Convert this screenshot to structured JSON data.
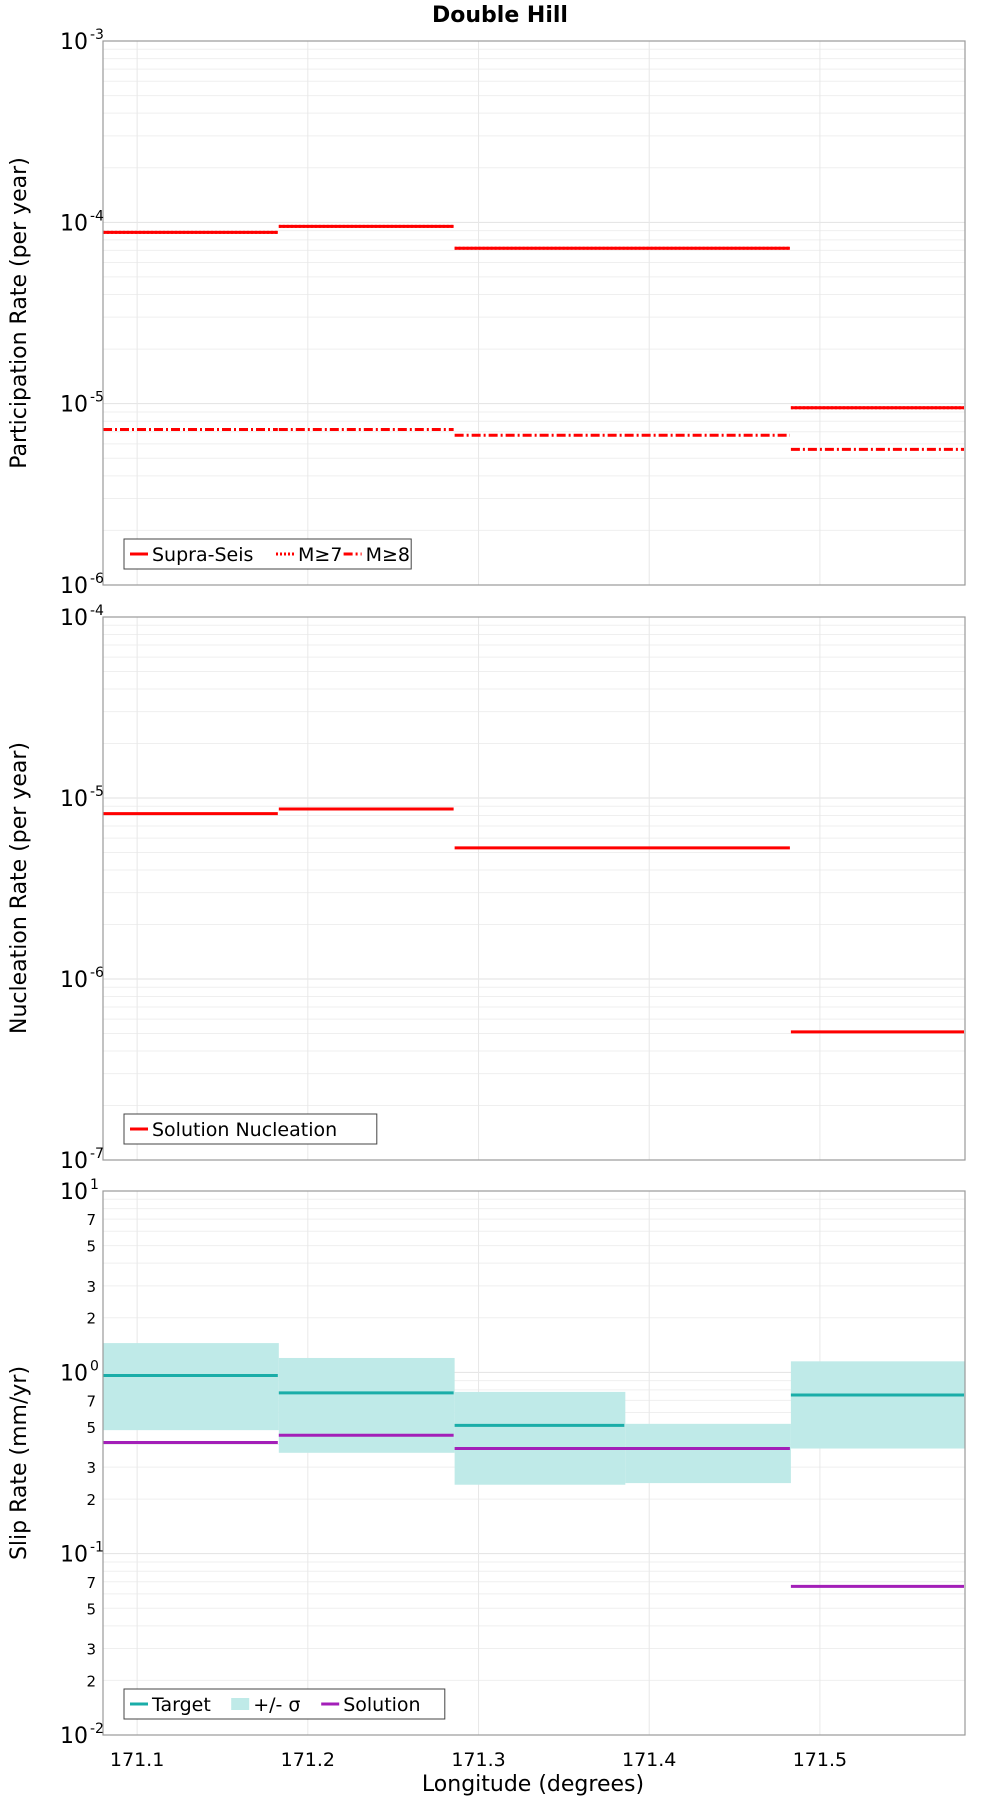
{
  "chart_data": {
    "type": "line",
    "title": "Double Hill",
    "xlabel": "Longitude (degrees)",
    "xlim": [
      171.08,
      171.585
    ],
    "xticks": [
      "171.1",
      "171.2",
      "171.3",
      "171.4",
      "171.5"
    ],
    "panels": [
      {
        "ylabel": "Participation Rate (per year)",
        "yscale": "log",
        "ylim": [
          1e-06,
          0.001
        ],
        "major_ticks": [
          {
            "base": "10",
            "exp": "-6"
          },
          {
            "base": "10",
            "exp": "-5"
          },
          {
            "base": "10",
            "exp": "-4"
          },
          {
            "base": "10",
            "exp": "-3"
          }
        ],
        "minor_labels": [],
        "legend": {
          "position": "bottom-left",
          "entries": [
            "Supra-Seis",
            "M≥7",
            "M≥8"
          ]
        },
        "series": [
          {
            "name": "Supra-Seis",
            "style": "solid",
            "color": "#ff0000",
            "segments": [
              {
                "x0": 171.08,
                "x1": 171.183,
                "y": 8.8e-05
              },
              {
                "x0": 171.183,
                "x1": 171.286,
                "y": 9.5e-05
              },
              {
                "x0": 171.286,
                "x1": 171.483,
                "y": 7.2e-05
              },
              {
                "x0": 171.483,
                "x1": 171.585,
                "y": 9.5e-06
              }
            ]
          },
          {
            "name": "M≥7",
            "style": "dotted",
            "color": "#ff0000",
            "segments": [
              {
                "x0": 171.08,
                "x1": 171.183,
                "y": 8.8e-05
              },
              {
                "x0": 171.183,
                "x1": 171.286,
                "y": 9.5e-05
              },
              {
                "x0": 171.286,
                "x1": 171.483,
                "y": 7.2e-05
              },
              {
                "x0": 171.483,
                "x1": 171.585,
                "y": 9.5e-06
              }
            ]
          },
          {
            "name": "M≥8",
            "style": "dashdot",
            "color": "#ff0000",
            "segments": [
              {
                "x0": 171.08,
                "x1": 171.183,
                "y": 7.2e-06
              },
              {
                "x0": 171.183,
                "x1": 171.286,
                "y": 7.2e-06
              },
              {
                "x0": 171.286,
                "x1": 171.483,
                "y": 6.7e-06
              },
              {
                "x0": 171.483,
                "x1": 171.585,
                "y": 5.6e-06
              }
            ]
          }
        ]
      },
      {
        "ylabel": "Nucleation Rate (per year)",
        "yscale": "log",
        "ylim": [
          1e-07,
          0.0001
        ],
        "major_ticks": [
          {
            "base": "10",
            "exp": "-7"
          },
          {
            "base": "10",
            "exp": "-6"
          },
          {
            "base": "10",
            "exp": "-5"
          },
          {
            "base": "10",
            "exp": "-4"
          }
        ],
        "minor_labels": [],
        "legend": {
          "position": "bottom-left",
          "entries": [
            "Solution Nucleation"
          ]
        },
        "series": [
          {
            "name": "Solution Nucleation",
            "style": "solid",
            "color": "#ff0000",
            "segments": [
              {
                "x0": 171.08,
                "x1": 171.183,
                "y": 8.2e-06
              },
              {
                "x0": 171.183,
                "x1": 171.286,
                "y": 8.7e-06
              },
              {
                "x0": 171.286,
                "x1": 171.483,
                "y": 5.3e-06
              },
              {
                "x0": 171.483,
                "x1": 171.585,
                "y": 5.1e-07
              }
            ]
          }
        ]
      },
      {
        "ylabel": "Slip Rate (mm/yr)",
        "yscale": "log",
        "ylim": [
          0.01,
          10
        ],
        "major_ticks": [
          {
            "base": "10",
            "exp": "-2"
          },
          {
            "base": "10",
            "exp": "-1"
          },
          {
            "base": "10",
            "exp": "0"
          },
          {
            "base": "10",
            "exp": "1"
          }
        ],
        "minor_labels": [
          "2",
          "3",
          "5",
          "7"
        ],
        "legend": {
          "position": "bottom-left",
          "entries": [
            "Target",
            "+/- σ",
            "Solution"
          ]
        },
        "band": {
          "name": "+/- σ",
          "color": "#bfeae8",
          "segments": [
            {
              "x0": 171.08,
              "x1": 171.183,
              "lo": 0.48,
              "hi": 1.45
            },
            {
              "x0": 171.183,
              "x1": 171.286,
              "lo": 0.36,
              "hi": 1.2
            },
            {
              "x0": 171.286,
              "x1": 171.386,
              "lo": 0.24,
              "hi": 0.78
            },
            {
              "x0": 171.386,
              "x1": 171.483,
              "lo": 0.245,
              "hi": 0.52
            },
            {
              "x0": 171.483,
              "x1": 171.585,
              "lo": 0.38,
              "hi": 1.15
            }
          ]
        },
        "series": [
          {
            "name": "Target",
            "style": "solid",
            "color": "#1aada8",
            "segments": [
              {
                "x0": 171.08,
                "x1": 171.183,
                "y": 0.96
              },
              {
                "x0": 171.183,
                "x1": 171.286,
                "y": 0.77
              },
              {
                "x0": 171.286,
                "x1": 171.386,
                "y": 0.51
              },
              {
                "x0": 171.483,
                "x1": 171.585,
                "y": 0.75
              }
            ]
          },
          {
            "name": "Solution",
            "style": "solid",
            "color": "#a31fb8",
            "segments": [
              {
                "x0": 171.08,
                "x1": 171.183,
                "y": 0.41
              },
              {
                "x0": 171.183,
                "x1": 171.286,
                "y": 0.45
              },
              {
                "x0": 171.286,
                "x1": 171.483,
                "y": 0.38
              },
              {
                "x0": 171.483,
                "x1": 171.585,
                "y": 0.066
              }
            ]
          }
        ]
      }
    ]
  }
}
